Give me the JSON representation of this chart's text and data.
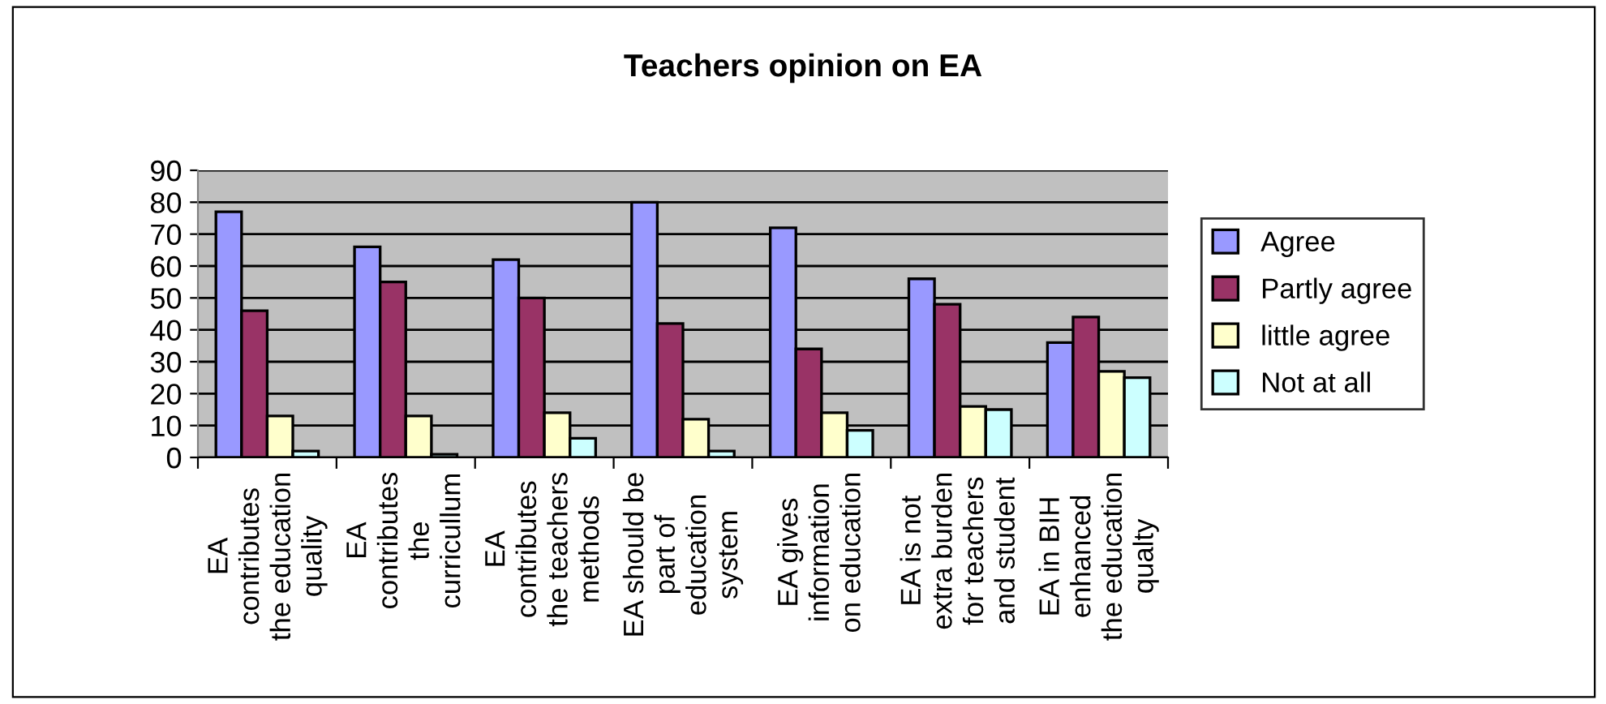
{
  "chart_data": {
    "type": "bar",
    "title": "Teachers opinion on EA",
    "categories": [
      "EA\ncontributes\nthe education\nquality",
      "EA\ncontributes\nthe\ncurricullum",
      "EA\ncontributes\nthe teachers\nmethods",
      "EA should be\npart of\neducation\nsystem",
      "EA gives\ninformation\non education",
      "EA is not\nextra burden\nfor teachers\nand student",
      "EA in BIH\nenhanced\nthe education\nqualty"
    ],
    "series": [
      {
        "name": "Agree",
        "color": "#9999ff",
        "values": [
          77,
          66,
          62,
          80,
          72,
          56,
          36
        ]
      },
      {
        "name": "Partly agree",
        "color": "#993366",
        "values": [
          46,
          55,
          50,
          42,
          34,
          48,
          44
        ]
      },
      {
        "name": "little agree",
        "color": "#ffffcc",
        "values": [
          13,
          13,
          14,
          12,
          14,
          16,
          27
        ]
      },
      {
        "name": "Not at all",
        "color": "#ccffff",
        "values": [
          2,
          1,
          6,
          2,
          8.5,
          15,
          25
        ]
      }
    ],
    "ylim": [
      0,
      90
    ],
    "yticks": [
      0,
      10,
      20,
      30,
      40,
      50,
      60,
      70,
      80,
      90
    ],
    "grid": "y",
    "legend": "right"
  }
}
